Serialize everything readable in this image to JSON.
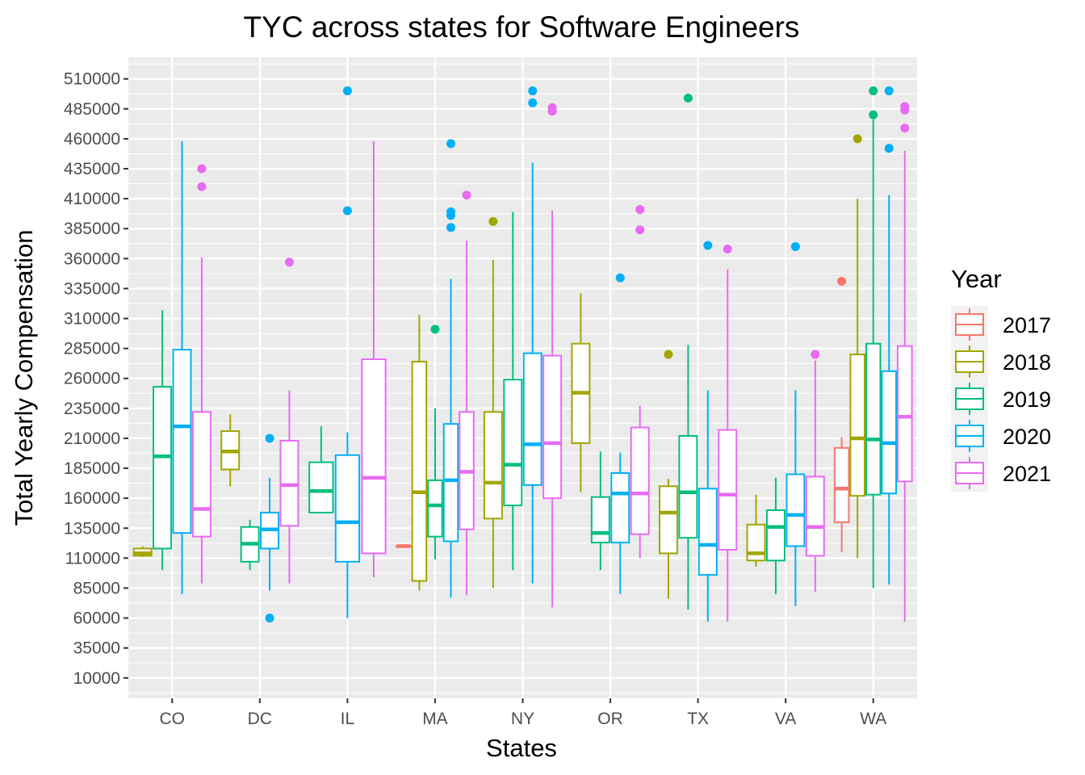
{
  "chart_data": {
    "type": "boxplot",
    "title": "TYC across states for Software Engineers",
    "xlabel": "States",
    "ylabel": "Total Yearly Compensation",
    "ylim": [
      -7000,
      528000
    ],
    "y_ticks": [
      10000,
      35000,
      60000,
      85000,
      110000,
      135000,
      160000,
      185000,
      210000,
      235000,
      260000,
      285000,
      310000,
      335000,
      360000,
      385000,
      410000,
      435000,
      460000,
      485000,
      510000
    ],
    "grid": true,
    "legend_title": "Year",
    "legend_position": "right",
    "categories": [
      "CO",
      "DC",
      "IL",
      "MA",
      "NY",
      "OR",
      "TX",
      "VA",
      "WA"
    ],
    "series": [
      {
        "name": "2017",
        "color": "#F8766D"
      },
      {
        "name": "2018",
        "color": "#A3A500"
      },
      {
        "name": "2019",
        "color": "#00BF7D"
      },
      {
        "name": "2020",
        "color": "#00B0F6"
      },
      {
        "name": "2021",
        "color": "#E76BF3"
      }
    ],
    "groups": [
      {
        "state": "CO",
        "boxes": [
          {
            "year": "2018",
            "min": 111000,
            "q1": 112000,
            "median": 114000,
            "q3": 118000,
            "max": 120000,
            "outliers": []
          },
          {
            "year": "2019",
            "min": 100000,
            "q1": 118000,
            "median": 195000,
            "q3": 253000,
            "max": 317000,
            "outliers": []
          },
          {
            "year": "2020",
            "min": 80000,
            "q1": 131000,
            "median": 220000,
            "q3": 284000,
            "max": 458000,
            "outliers": []
          },
          {
            "year": "2021",
            "min": 89000,
            "q1": 128000,
            "median": 151000,
            "q3": 232000,
            "max": 361000,
            "outliers": [
              420000,
              435000
            ]
          }
        ]
      },
      {
        "state": "DC",
        "boxes": [
          {
            "year": "2018",
            "min": 170000,
            "q1": 184000,
            "median": 199000,
            "q3": 216000,
            "max": 230000,
            "outliers": []
          },
          {
            "year": "2019",
            "min": 100000,
            "q1": 107000,
            "median": 122000,
            "q3": 136000,
            "max": 142000,
            "outliers": []
          },
          {
            "year": "2020",
            "min": 83000,
            "q1": 118000,
            "median": 134000,
            "q3": 148000,
            "max": 177000,
            "outliers": [
              60000,
              210000
            ]
          },
          {
            "year": "2021",
            "min": 89000,
            "q1": 137000,
            "median": 171000,
            "q3": 208000,
            "max": 250000,
            "outliers": [
              357000
            ]
          }
        ]
      },
      {
        "state": "IL",
        "boxes": [
          {
            "year": "2019",
            "min": 148000,
            "q1": 148000,
            "median": 166000,
            "q3": 190000,
            "max": 220000,
            "outliers": []
          },
          {
            "year": "2020",
            "min": 60000,
            "q1": 107000,
            "median": 140000,
            "q3": 196000,
            "max": 215000,
            "outliers": [
              400000,
              500000
            ]
          },
          {
            "year": "2021",
            "min": 94000,
            "q1": 114000,
            "median": 177000,
            "q3": 276000,
            "max": 458000,
            "outliers": []
          }
        ]
      },
      {
        "state": "MA",
        "boxes": [
          {
            "year": "2017",
            "min": 120000,
            "q1": 120000,
            "median": 120000,
            "q3": 120000,
            "max": 120000,
            "outliers": []
          },
          {
            "year": "2018",
            "min": 83000,
            "q1": 91000,
            "median": 165000,
            "q3": 274000,
            "max": 313000,
            "outliers": []
          },
          {
            "year": "2019",
            "min": 109000,
            "q1": 128000,
            "median": 154000,
            "q3": 175000,
            "max": 235000,
            "outliers": [
              301000
            ]
          },
          {
            "year": "2020",
            "min": 77000,
            "q1": 124000,
            "median": 175000,
            "q3": 222000,
            "max": 343000,
            "outliers": [
              386000,
              396000,
              399000,
              456000
            ]
          },
          {
            "year": "2021",
            "min": 79000,
            "q1": 134000,
            "median": 182000,
            "q3": 232000,
            "max": 375000,
            "outliers": [
              413000
            ]
          }
        ]
      },
      {
        "state": "NY",
        "boxes": [
          {
            "year": "2018",
            "min": 85000,
            "q1": 143000,
            "median": 173000,
            "q3": 232000,
            "max": 359000,
            "outliers": [
              391000
            ]
          },
          {
            "year": "2019",
            "min": 100000,
            "q1": 154000,
            "median": 188000,
            "q3": 259000,
            "max": 399000,
            "outliers": []
          },
          {
            "year": "2020",
            "min": 89000,
            "q1": 171000,
            "median": 205000,
            "q3": 281000,
            "max": 440000,
            "outliers": [
              490000,
              500000
            ]
          },
          {
            "year": "2021",
            "min": 69000,
            "q1": 160000,
            "median": 206000,
            "q3": 279000,
            "max": 400000,
            "outliers": [
              483000,
              486000
            ]
          }
        ]
      },
      {
        "state": "OR",
        "boxes": [
          {
            "year": "2018",
            "min": 165000,
            "q1": 206000,
            "median": 248000,
            "q3": 289000,
            "max": 331000,
            "outliers": []
          },
          {
            "year": "2019",
            "min": 100000,
            "q1": 123000,
            "median": 131000,
            "q3": 161000,
            "max": 199000,
            "outliers": []
          },
          {
            "year": "2020",
            "min": 80000,
            "q1": 123000,
            "median": 164000,
            "q3": 181000,
            "max": 198000,
            "outliers": [
              344000
            ]
          },
          {
            "year": "2021",
            "min": 110000,
            "q1": 130000,
            "median": 164000,
            "q3": 219000,
            "max": 237000,
            "outliers": [
              384000,
              401000
            ]
          }
        ]
      },
      {
        "state": "TX",
        "boxes": [
          {
            "year": "2018",
            "min": 76000,
            "q1": 114000,
            "median": 148000,
            "q3": 170000,
            "max": 176000,
            "outliers": [
              280000
            ]
          },
          {
            "year": "2019",
            "min": 67000,
            "q1": 127000,
            "median": 165000,
            "q3": 212000,
            "max": 288000,
            "outliers": [
              494000
            ]
          },
          {
            "year": "2020",
            "min": 57000,
            "q1": 96000,
            "median": 121000,
            "q3": 168000,
            "max": 250000,
            "outliers": [
              371000
            ]
          },
          {
            "year": "2021",
            "min": 57000,
            "q1": 117000,
            "median": 163000,
            "q3": 217000,
            "max": 351000,
            "outliers": [
              368000
            ]
          }
        ]
      },
      {
        "state": "VA",
        "boxes": [
          {
            "year": "2018",
            "min": 103000,
            "q1": 108000,
            "median": 114000,
            "q3": 138000,
            "max": 163000,
            "outliers": []
          },
          {
            "year": "2019",
            "min": 80000,
            "q1": 108000,
            "median": 136000,
            "q3": 150000,
            "max": 177000,
            "outliers": []
          },
          {
            "year": "2020",
            "min": 70000,
            "q1": 120000,
            "median": 146000,
            "q3": 180000,
            "max": 250000,
            "outliers": [
              370000
            ]
          },
          {
            "year": "2021",
            "min": 82000,
            "q1": 112000,
            "median": 136000,
            "q3": 178000,
            "max": 275000,
            "outliers": [
              280000
            ]
          }
        ]
      },
      {
        "state": "WA",
        "boxes": [
          {
            "year": "2017",
            "min": 115000,
            "q1": 140000,
            "median": 168000,
            "q3": 202000,
            "max": 211000,
            "outliers": [
              341000
            ]
          },
          {
            "year": "2018",
            "min": 110000,
            "q1": 162000,
            "median": 210000,
            "q3": 280000,
            "max": 410000,
            "outliers": [
              460000
            ]
          },
          {
            "year": "2019",
            "min": 85000,
            "q1": 163000,
            "median": 209000,
            "q3": 289000,
            "max": 476000,
            "outliers": [
              480000,
              500000
            ]
          },
          {
            "year": "2020",
            "min": 88000,
            "q1": 164000,
            "median": 206000,
            "q3": 266000,
            "max": 413000,
            "outliers": [
              452000,
              500000
            ]
          },
          {
            "year": "2021",
            "min": 57000,
            "q1": 174000,
            "median": 228000,
            "q3": 287000,
            "max": 450000,
            "outliers": [
              469000,
              484000,
              487000
            ]
          }
        ]
      }
    ]
  }
}
